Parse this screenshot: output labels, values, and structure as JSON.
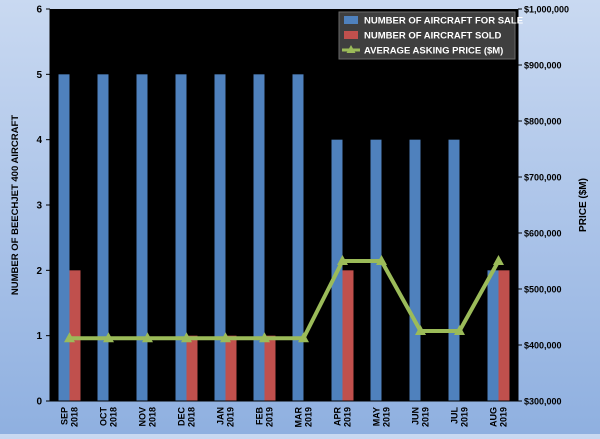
{
  "chart_data": {
    "type": "bar",
    "categories": [
      [
        "SEP",
        "2018"
      ],
      [
        "OCT",
        "2018"
      ],
      [
        "NOV",
        "2018"
      ],
      [
        "DEC",
        "2018"
      ],
      [
        "JAN",
        "2019"
      ],
      [
        "FEB",
        "2019"
      ],
      [
        "MAR",
        "2019"
      ],
      [
        "APR",
        "2019"
      ],
      [
        "MAY",
        "2019"
      ],
      [
        "JUN",
        "2019"
      ],
      [
        "JUL",
        "2019"
      ],
      [
        "AUG",
        "2019"
      ]
    ],
    "series": [
      {
        "name": "NUMBER OF AIRCRAFT FOR SALE",
        "kind": "bar",
        "axis": "left",
        "color": "#4f81bd",
        "values": [
          5,
          5,
          5,
          5,
          5,
          5,
          5,
          4,
          4,
          4,
          4,
          2
        ]
      },
      {
        "name": "NUMBER OF AIRCRAFT SOLD",
        "kind": "bar",
        "axis": "left",
        "color": "#c0504d",
        "values": [
          2,
          0,
          0,
          1,
          1,
          1,
          0,
          2,
          0,
          0,
          0,
          2
        ]
      },
      {
        "name": "AVERAGE ASKING PRICE ($M)",
        "kind": "line",
        "axis": "right",
        "color": "#9bbb59",
        "values": [
          412000,
          412000,
          412000,
          412000,
          412000,
          412000,
          412000,
          550000,
          550000,
          425000,
          425000,
          550000
        ]
      }
    ],
    "ylabel": "NUMBER OF BEECHJET 400 AIRCRAFT",
    "y2label": "PRICE ($M)",
    "ylim": [
      0,
      6
    ],
    "yticks": [
      "0",
      "1",
      "2",
      "3",
      "4",
      "5",
      "6"
    ],
    "y2lim": [
      300000,
      1000000
    ],
    "y2ticks": [
      "$300,000",
      "$400,000",
      "$500,000",
      "$600,000",
      "$700,000",
      "$800,000",
      "$900,000",
      "$1,000,000"
    ],
    "legend_position": "top-right",
    "plot_background": "#000000",
    "grid": false
  }
}
